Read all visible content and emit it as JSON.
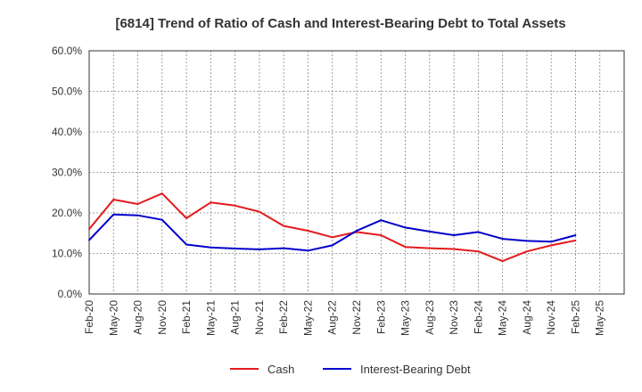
{
  "chart_data": {
    "type": "line",
    "title": "[6814]  Trend of Ratio of Cash and Interest-Bearing Debt to Total Assets",
    "xlabel": "",
    "ylabel": "",
    "ylim": [
      0,
      60
    ],
    "yticks": [
      0,
      10,
      20,
      30,
      40,
      50,
      60
    ],
    "ytick_labels": [
      "0.0%",
      "10.0%",
      "20.0%",
      "30.0%",
      "40.0%",
      "50.0%",
      "60.0%"
    ],
    "x": [
      "Feb-20",
      "May-20",
      "Aug-20",
      "Nov-20",
      "Feb-21",
      "May-21",
      "Aug-21",
      "Nov-21",
      "Feb-22",
      "May-22",
      "Aug-22",
      "Nov-22",
      "Feb-23",
      "May-23",
      "Aug-23",
      "Nov-23",
      "Feb-24",
      "May-24",
      "Aug-24",
      "Nov-24",
      "Feb-25",
      "May-25"
    ],
    "grid": true,
    "legend_position": "bottom",
    "series": [
      {
        "name": "Cash",
        "color": "#e31a1c",
        "values": [
          16.0,
          23.3,
          22.2,
          24.8,
          18.7,
          22.6,
          21.8,
          20.3,
          16.8,
          15.6,
          14.0,
          15.3,
          14.5,
          11.6,
          11.3,
          11.1,
          10.5,
          8.1,
          10.5,
          12.0,
          13.2,
          null
        ]
      },
      {
        "name": "Interest-Bearing Debt",
        "color": "#0000cc",
        "values": [
          13.3,
          19.6,
          19.4,
          18.3,
          12.2,
          11.5,
          11.2,
          11.0,
          11.3,
          10.7,
          12.0,
          15.6,
          18.2,
          16.4,
          15.4,
          14.5,
          15.3,
          13.6,
          13.1,
          12.9,
          14.5,
          null
        ]
      }
    ]
  }
}
